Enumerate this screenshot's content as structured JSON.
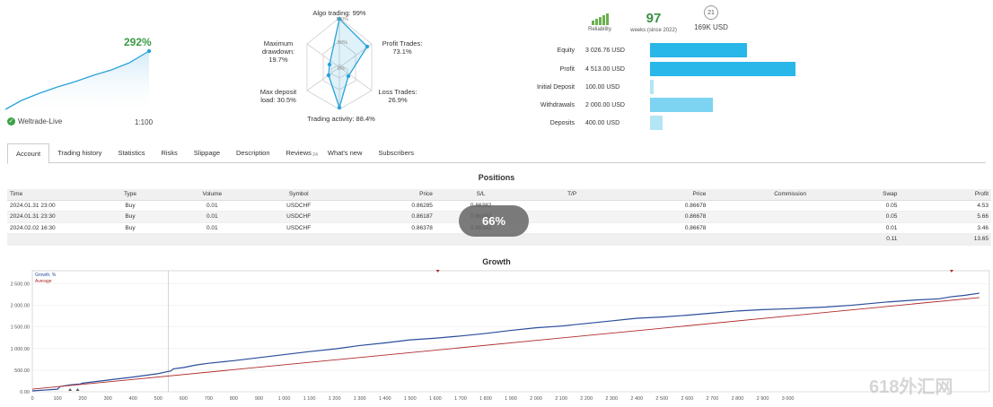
{
  "mini": {
    "growth": "292%",
    "broker": "Weltrade-Live",
    "leverage": "1:100"
  },
  "radar": {
    "algo": "Algo trading: 99%",
    "profit_trades": "Profit Trades:",
    "profit_trades_val": "73.1%",
    "loss_trades": "Loss Trades:",
    "loss_trades_val": "26.9%",
    "trading_activity": "Trading activity: 88.4%",
    "max_deposit": "Max deposit",
    "max_deposit_val": "load: 30.5%",
    "max_drawdown": "Maximum",
    "max_drawdown_2": "drawdown:",
    "max_drawdown_val": "19.7%",
    "ring_100": "100%",
    "ring_50": "50%",
    "ring_0": "0%"
  },
  "stats": {
    "reliability": "Reliability",
    "weeks_num": "97",
    "weeks_label": "weeks (since 2022)",
    "users_num": "21",
    "users_val": "169K USD"
  },
  "finance": [
    {
      "label": "Equity",
      "value": "3 026.76 USD",
      "level": 0.4,
      "color": "#29b6e8"
    },
    {
      "label": "Profit",
      "value": "4 513.00 USD",
      "level": 0.6,
      "color": "#29b6e8"
    },
    {
      "label": "Initial Deposit",
      "value": "100.00 USD",
      "level": 0.01,
      "color": "#b3e5f5"
    },
    {
      "label": "Withdrawals",
      "value": "2 000.00 USD",
      "level": 0.26,
      "color": "#7dd3f2"
    },
    {
      "label": "Deposits",
      "value": "400.00 USD",
      "level": 0.05,
      "color": "#b3e5f5"
    }
  ],
  "tabs": [
    "Account",
    "Trading history",
    "Statistics",
    "Risks",
    "Slippage",
    "Description",
    "Reviews",
    "What's new",
    "Subscribers"
  ],
  "reviews_count": "24",
  "positions": {
    "title": "Positions",
    "headers": [
      "Time",
      "Type",
      "Volume",
      "Symbol",
      "Price",
      "S/L",
      "T/P",
      "Price",
      "Commission",
      "Swap",
      "Profit"
    ],
    "rows": [
      [
        "2024.01.31 23:00",
        "Buy",
        "0.01",
        "USDCHF",
        "0.86285",
        "0.86382",
        "",
        "0.86678",
        "",
        "0.05",
        "4.53"
      ],
      [
        "2024.01.31 23:30",
        "Buy",
        "0.01",
        "USDCHF",
        "0.86187",
        "0.86382",
        "",
        "0.86678",
        "",
        "0.05",
        "5.66"
      ],
      [
        "2024.02.02 16:30",
        "Buy",
        "0.01",
        "USDCHF",
        "0.86378",
        "0.86382",
        "",
        "0.86678",
        "",
        "0.01",
        "3.46"
      ]
    ],
    "total_swap": "0.11",
    "total_profit": "13.65"
  },
  "overlay_badge": "66%",
  "growth": {
    "title": "Growth",
    "legend_growth": "Growth, %",
    "legend_average": "Average",
    "color_growth": "#2a4d9b",
    "color_average": "#b02a2a"
  },
  "chart_data": {
    "type": "line",
    "title": "Growth",
    "xlim": [
      0,
      3800
    ],
    "ylim": [
      0,
      2800
    ],
    "x_ticks": [
      0,
      100,
      200,
      300,
      400,
      500,
      600,
      700,
      800,
      900,
      1000,
      1100,
      1200,
      1300,
      1400,
      1500,
      1600,
      1700,
      1800,
      1900,
      2000,
      2100,
      2200,
      2300,
      2400,
      2500,
      2600,
      2700,
      2800,
      2900,
      3000
    ],
    "x_tick_labels": [
      "0",
      "100",
      "200",
      "300",
      "400",
      "500",
      "600",
      "700",
      "800",
      "900",
      "1 000",
      "1 100",
      "1 200",
      "1 300",
      "1 400",
      "1 500",
      "1 600",
      "1 700",
      "1 800",
      "1 900",
      "2 000",
      "2 100",
      "2 200",
      "2 300",
      "2 400",
      "2 500",
      "2 600",
      "2 700",
      "2 800",
      "2 900",
      "3 000"
    ],
    "y_ticks": [
      0,
      500,
      1000,
      1500,
      2000,
      2500
    ],
    "y_tick_labels": [
      "0.00",
      "500.00",
      "1 000.00",
      "1 500.00",
      "2 000.00",
      "2 500.00"
    ],
    "series": [
      {
        "name": "Growth, %",
        "x": [
          0,
          50,
          100,
          110,
          150,
          190,
          200,
          300,
          400,
          500,
          540,
          550,
          560,
          600,
          650,
          700,
          800,
          900,
          1000,
          1100,
          1200,
          1300,
          1400,
          1500,
          1600,
          1700,
          1800,
          1900,
          2000,
          2100,
          2200,
          2300,
          2400,
          2500,
          2600,
          2700,
          2800,
          2900,
          3000,
          3150,
          3250,
          3400,
          3500,
          3600,
          3650,
          3700,
          3760
        ],
        "y": [
          20,
          40,
          60,
          120,
          160,
          180,
          200,
          270,
          340,
          420,
          470,
          480,
          530,
          560,
          620,
          660,
          720,
          790,
          860,
          930,
          990,
          1070,
          1130,
          1200,
          1240,
          1290,
          1350,
          1420,
          1480,
          1520,
          1580,
          1640,
          1700,
          1730,
          1770,
          1820,
          1870,
          1900,
          1920,
          1960,
          2000,
          2080,
          2120,
          2150,
          2200,
          2230,
          2280
        ]
      },
      {
        "name": "Average",
        "x": [
          0,
          3760
        ],
        "y": [
          60,
          2180
        ]
      }
    ]
  }
}
